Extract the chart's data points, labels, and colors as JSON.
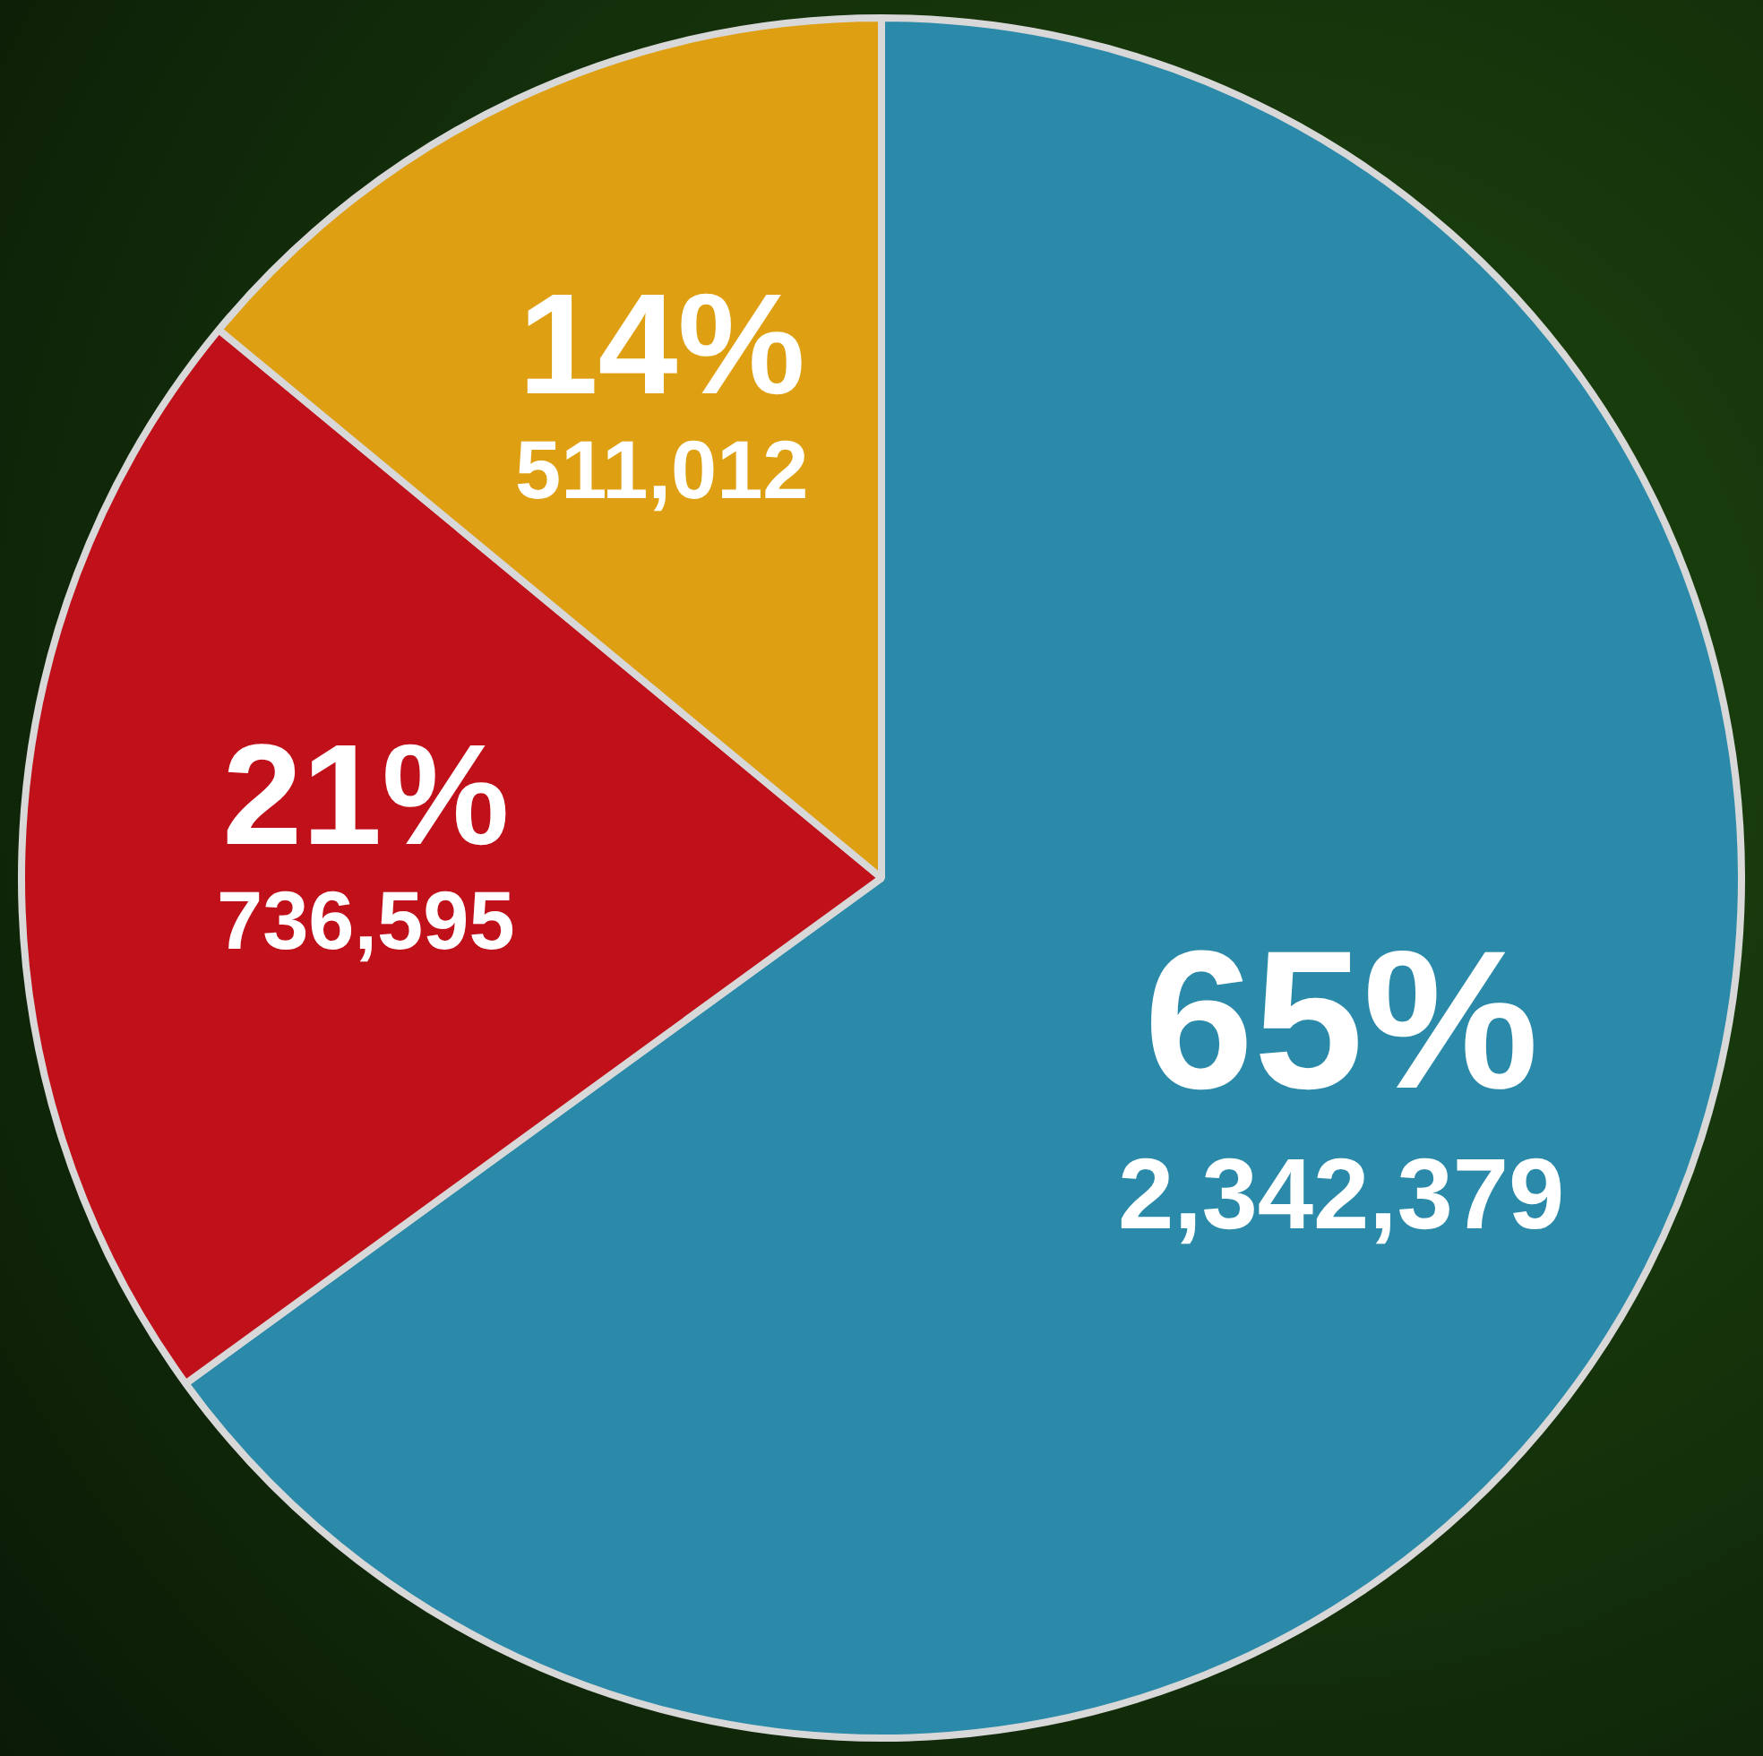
{
  "chart_data": {
    "type": "pie",
    "categories": [
      null,
      null,
      null
    ],
    "values": [
      65,
      21,
      14
    ],
    "colors": [
      "#2b8aa9",
      "#c0101a",
      "#df9f12"
    ],
    "value_labels": [
      "65%\n2,342,379",
      "21%\n736,595",
      "14%\n511,012"
    ],
    "legend": false
  }
}
